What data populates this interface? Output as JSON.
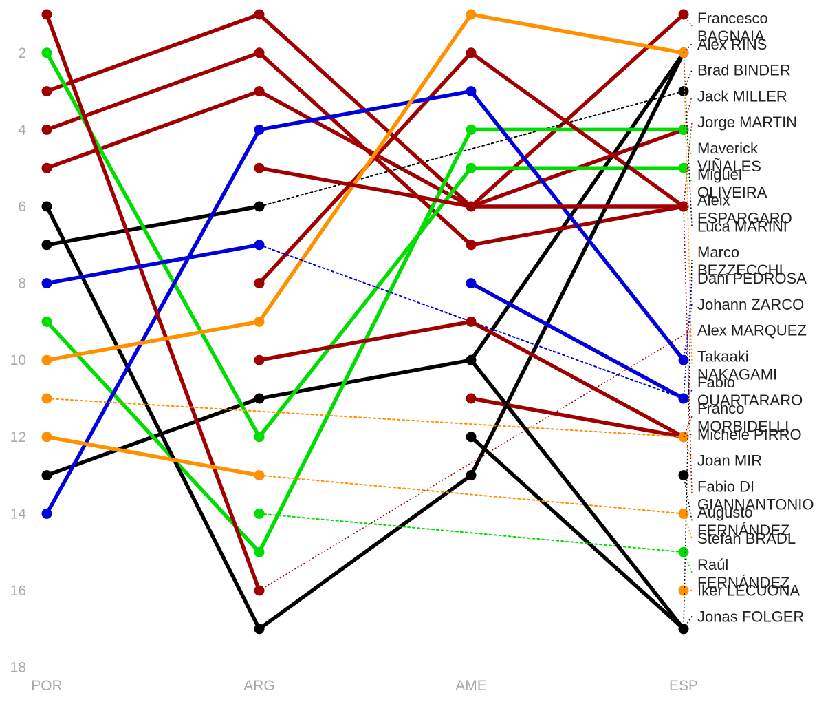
{
  "chart_data": {
    "type": "line",
    "title": "",
    "xlabel": "",
    "ylabel": "",
    "categories": [
      "POR",
      "ARG",
      "AME",
      "ESP"
    ],
    "y_ticks": [
      "2",
      "4",
      "6",
      "8",
      "10",
      "12",
      "14",
      "16",
      "18"
    ],
    "y_tick_values": [
      2,
      4,
      6,
      8,
      10,
      12,
      14,
      16,
      18
    ],
    "ylim": [
      0.9,
      18
    ],
    "y_inverted": true,
    "grid": false,
    "legend": "right (labels at last point)",
    "series": [
      {
        "name": "Francesco BAGNAIA",
        "label_lines": [
          "Francesco",
          "BAGNAIA"
        ],
        "color": "#a00000",
        "values": [
          5,
          3,
          6,
          1
        ]
      },
      {
        "name": "Alex RINS",
        "label_lines": [
          "Alex RINS"
        ],
        "color": "#000000",
        "values": [
          13,
          11,
          10,
          2
        ]
      },
      {
        "name": "Brad BINDER",
        "label_lines": [
          "Brad BINDER"
        ],
        "color": "#000000",
        "values": [
          7,
          6,
          null,
          3
        ]
      },
      {
        "name": "Jack MILLER",
        "label_lines": [
          "Jack MILLER"
        ],
        "color": "#a00000",
        "values": [
          3,
          1,
          6,
          4
        ]
      },
      {
        "name": "Jorge MARTIN",
        "label_lines": [
          "Jorge MARTIN"
        ],
        "color": "#a00000",
        "values": [
          4,
          2,
          7,
          6
        ]
      },
      {
        "name": "Maverick VIÑALES",
        "label_lines": [
          "Maverick",
          "VIÑALES"
        ],
        "color": "#00dd00",
        "values": [
          9,
          15,
          4,
          4
        ]
      },
      {
        "name": "Miguel OLIVEIRA",
        "label_lines": [
          "Miguel",
          "OLIVEIRA"
        ],
        "color": "#00dd00",
        "values": [
          2,
          12,
          5,
          5
        ]
      },
      {
        "name": "Aleix ESPARGARO",
        "label_lines": [
          "Aleix",
          "ESPARGARO"
        ],
        "color": "#a00000",
        "values": [
          null,
          8,
          2,
          6
        ]
      },
      {
        "name": "Luca MARINI",
        "label_lines": [
          "Luca MARINI"
        ],
        "color": "#000000",
        "values": [
          6,
          17,
          13,
          2
        ]
      },
      {
        "name": "Marco BEZZECCHI",
        "label_lines": [
          "Marco",
          "BEZZECCHI"
        ],
        "color": "#000000",
        "values": [
          null,
          null,
          12,
          17
        ]
      },
      {
        "name": "Dani PEDROSA",
        "label_lines": [
          "Dani PEDROSA"
        ],
        "color": "#0000dd",
        "values": [
          null,
          null,
          8,
          11
        ]
      },
      {
        "name": "Johann ZARCO",
        "label_lines": [
          "Johann ZARCO"
        ],
        "color": "#0000dd",
        "values": [
          14,
          4,
          3,
          10
        ]
      },
      {
        "name": "Alex MARQUEZ",
        "label_lines": [
          "Alex MARQUEZ"
        ],
        "color": "#a00000",
        "values": [
          1,
          16,
          null,
          null
        ]
      },
      {
        "name": "Takaaki NAKAGAMI",
        "label_lines": [
          "Takaaki",
          "NAKAGAMI"
        ],
        "color": "#ff9000",
        "values": [
          10,
          9,
          1,
          2
        ]
      },
      {
        "name": "Fabio QUARTARARO",
        "label_lines": [
          "Fabio",
          "QUARTARARO"
        ],
        "color": "#0000dd",
        "values": [
          8,
          7,
          null,
          11
        ]
      },
      {
        "name": "Franco MORBIDELLI",
        "label_lines": [
          "Franco",
          "MORBIDELLI"
        ],
        "color": "#a00000",
        "values": [
          null,
          10,
          9,
          12
        ]
      },
      {
        "name": "Michele PIRRO",
        "label_lines": [
          "Michele PIRRO"
        ],
        "color": "#a00000",
        "values": [
          null,
          null,
          11,
          12
        ]
      },
      {
        "name": "Joan MIR",
        "label_lines": [
          "Joan MIR"
        ],
        "color": "#ff9000",
        "values": [
          11,
          null,
          null,
          12
        ]
      },
      {
        "name": "Fabio DI GIANNANTONIO",
        "label_lines": [
          "Fabio DI",
          "GIANNANTONIO"
        ],
        "color": "#a00000",
        "values": [
          null,
          5,
          6,
          6
        ]
      },
      {
        "name": "Augusto FERNÁNDEZ",
        "label_lines": [
          "Augusto",
          "FERNÁNDEZ"
        ],
        "color": "#000000",
        "values": [
          null,
          null,
          null,
          13
        ]
      },
      {
        "name": "Stefan BRADL",
        "label_lines": [
          "Stefan BRADL"
        ],
        "color": "#ff9000",
        "values": [
          12,
          13,
          null,
          14
        ]
      },
      {
        "name": "Raúl FERNÁNDEZ",
        "label_lines": [
          "Raúl",
          "FERNÁNDEZ"
        ],
        "color": "#00dd00",
        "values": [
          null,
          14,
          null,
          15
        ]
      },
      {
        "name": "Iker LECUONA",
        "label_lines": [
          "Iker LECUONA"
        ],
        "color": "#ff9000",
        "values": [
          null,
          null,
          null,
          16
        ]
      },
      {
        "name": "Jonas FOLGER",
        "label_lines": [
          "Jonas FOLGER"
        ],
        "color": "#000000",
        "values": [
          null,
          null,
          10,
          17
        ]
      }
    ]
  }
}
